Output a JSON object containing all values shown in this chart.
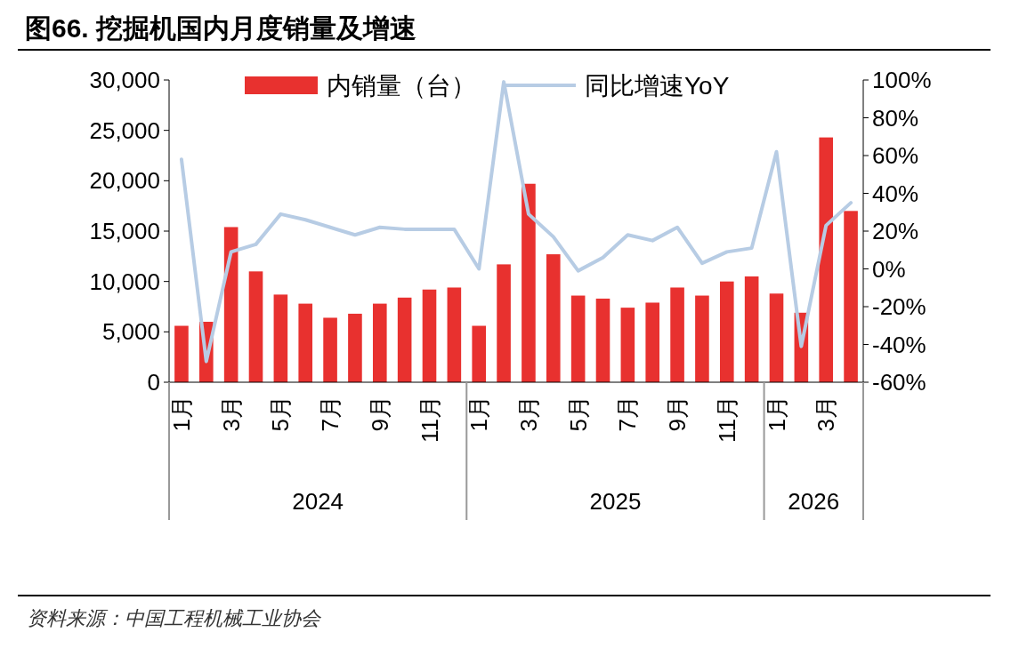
{
  "chart_data": {
    "type": "bar",
    "title": "图66. 挖掘机国内月度销量及增速",
    "categories": [
      "1月",
      null,
      "3月",
      null,
      "5月",
      null,
      "7月",
      null,
      "9月",
      null,
      "11月",
      null,
      "1月",
      null,
      "3月",
      null,
      "5月",
      null,
      "7月",
      null,
      "9月",
      null,
      "11月",
      null,
      "1月",
      null,
      "3月",
      null
    ],
    "series": [
      {
        "name": "内销量（台）",
        "color": "#e8312f",
        "values": [
          5600,
          6000,
          15400,
          11000,
          8700,
          7800,
          6400,
          6800,
          7800,
          8400,
          9200,
          9400,
          5600,
          11700,
          19700,
          12700,
          8600,
          8300,
          7400,
          7900,
          9400,
          8600,
          10000,
          10500,
          8800,
          6900,
          24300,
          17000
        ]
      },
      {
        "name": "同比增速YoY",
        "color": "#b7cce4",
        "type": "line",
        "axis": "y2",
        "values": [
          58,
          -49,
          9,
          13,
          29,
          26,
          22,
          18,
          22,
          21,
          21,
          21,
          0,
          99,
          29,
          17,
          -1,
          6,
          18,
          15,
          22,
          3,
          9,
          11,
          62,
          -41,
          23,
          35
        ]
      }
    ],
    "ylim": [
      0,
      30000
    ],
    "yticks": [
      0,
      {
        "value": 5000,
        "label": "5,000"
      },
      {
        "value": 10000,
        "label": "10,000"
      },
      {
        "value": 15000,
        "label": "15,000"
      },
      {
        "value": 20000,
        "label": "20,000"
      },
      {
        "value": 25000,
        "label": "25,000"
      },
      {
        "value": 30000,
        "label": "30,000"
      }
    ],
    "y2lim": [
      -60,
      100
    ],
    "y2ticks": [
      {
        "value": -60,
        "label": "-60%"
      },
      {
        "value": -40,
        "label": "-40%"
      },
      {
        "value": -20,
        "label": "-20%"
      },
      {
        "value": 0,
        "label": "0%"
      },
      {
        "value": 20,
        "label": "20%"
      },
      {
        "value": 40,
        "label": "40%"
      },
      {
        "value": 60,
        "label": "60%"
      },
      {
        "value": 80,
        "label": "80%"
      },
      {
        "value": 100,
        "label": "100%"
      }
    ],
    "legend": "top",
    "grid": false,
    "annotations": [
      "2024",
      "2025",
      "2026",
      "资料来源：中国工程机械工业协会"
    ]
  }
}
